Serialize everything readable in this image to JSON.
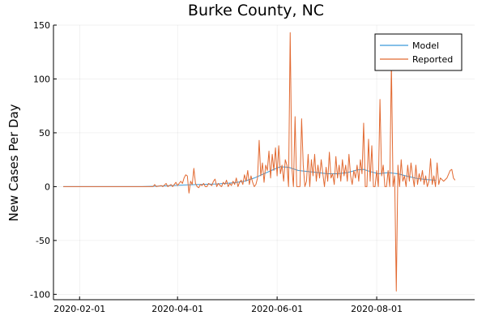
{
  "chart_data": {
    "type": "line",
    "title": "Burke County, NC",
    "xlabel": "",
    "ylabel": "New Cases Per Day",
    "x_axis": {
      "type": "date",
      "range": [
        "2020-01-16",
        "2020-09-30"
      ],
      "ticks": [
        "2020-02-01",
        "2020-04-01",
        "2020-06-01",
        "2020-08-01"
      ]
    },
    "y_axis": {
      "range": [
        -105,
        150
      ],
      "ticks": [
        -100,
        -50,
        0,
        50,
        100,
        150
      ]
    },
    "grid": true,
    "legend": "top-right",
    "series": [
      {
        "name": "Model",
        "color": "#3a9ad9",
        "points": [
          [
            "2020-01-22",
            0
          ],
          [
            "2020-02-15",
            0
          ],
          [
            "2020-03-10",
            0
          ],
          [
            "2020-03-20",
            0.5
          ],
          [
            "2020-03-28",
            1
          ],
          [
            "2020-04-05",
            1.5
          ],
          [
            "2020-04-15",
            2
          ],
          [
            "2020-04-25",
            2.5
          ],
          [
            "2020-05-05",
            3.5
          ],
          [
            "2020-05-12",
            5
          ],
          [
            "2020-05-18",
            8
          ],
          [
            "2020-05-24",
            12
          ],
          [
            "2020-05-30",
            16
          ],
          [
            "2020-06-03",
            18.5
          ],
          [
            "2020-06-08",
            18
          ],
          [
            "2020-06-14",
            15
          ],
          [
            "2020-06-20",
            14
          ],
          [
            "2020-06-26",
            13
          ],
          [
            "2020-07-02",
            12
          ],
          [
            "2020-07-08",
            12
          ],
          [
            "2020-07-14",
            13
          ],
          [
            "2020-07-20",
            15.5
          ],
          [
            "2020-07-24",
            16
          ],
          [
            "2020-07-28",
            14
          ],
          [
            "2020-08-02",
            12
          ],
          [
            "2020-08-08",
            13
          ],
          [
            "2020-08-14",
            12
          ],
          [
            "2020-08-20",
            9.5
          ],
          [
            "2020-08-26",
            7.5
          ],
          [
            "2020-09-01",
            6.5
          ],
          [
            "2020-09-06",
            6
          ]
        ]
      },
      {
        "name": "Reported",
        "color": "#e26a32",
        "points": [
          [
            "2020-01-22",
            0
          ],
          [
            "2020-03-10",
            0
          ],
          [
            "2020-03-17",
            0
          ],
          [
            "2020-03-18",
            2
          ],
          [
            "2020-03-19",
            0
          ],
          [
            "2020-03-22",
            1
          ],
          [
            "2020-03-23",
            0
          ],
          [
            "2020-03-25",
            3
          ],
          [
            "2020-03-26",
            0
          ],
          [
            "2020-03-28",
            2
          ],
          [
            "2020-03-29",
            0
          ],
          [
            "2020-03-31",
            4
          ],
          [
            "2020-04-01",
            1
          ],
          [
            "2020-04-03",
            5
          ],
          [
            "2020-04-04",
            3
          ],
          [
            "2020-04-05",
            8
          ],
          [
            "2020-04-06",
            11
          ],
          [
            "2020-04-07",
            10
          ],
          [
            "2020-04-08",
            -6
          ],
          [
            "2020-04-09",
            5
          ],
          [
            "2020-04-10",
            2
          ],
          [
            "2020-04-11",
            17
          ],
          [
            "2020-04-12",
            3
          ],
          [
            "2020-04-13",
            0
          ],
          [
            "2020-04-14",
            -1
          ],
          [
            "2020-04-15",
            2
          ],
          [
            "2020-04-16",
            1
          ],
          [
            "2020-04-17",
            3
          ],
          [
            "2020-04-18",
            0
          ],
          [
            "2020-04-19",
            0
          ],
          [
            "2020-04-20",
            3
          ],
          [
            "2020-04-21",
            2
          ],
          [
            "2020-04-22",
            1
          ],
          [
            "2020-04-23",
            5
          ],
          [
            "2020-04-24",
            7
          ],
          [
            "2020-04-25",
            0
          ],
          [
            "2020-04-26",
            3
          ],
          [
            "2020-04-27",
            1
          ],
          [
            "2020-04-28",
            0
          ],
          [
            "2020-04-29",
            4
          ],
          [
            "2020-04-30",
            2
          ],
          [
            "2020-05-01",
            6
          ],
          [
            "2020-05-02",
            0
          ],
          [
            "2020-05-03",
            3
          ],
          [
            "2020-05-04",
            1
          ],
          [
            "2020-05-05",
            5
          ],
          [
            "2020-05-06",
            2
          ],
          [
            "2020-05-07",
            8
          ],
          [
            "2020-05-08",
            0
          ],
          [
            "2020-05-09",
            4
          ],
          [
            "2020-05-10",
            6
          ],
          [
            "2020-05-11",
            2
          ],
          [
            "2020-05-12",
            11
          ],
          [
            "2020-05-13",
            5
          ],
          [
            "2020-05-14",
            15
          ],
          [
            "2020-05-15",
            2
          ],
          [
            "2020-05-16",
            10
          ],
          [
            "2020-05-17",
            4
          ],
          [
            "2020-05-18",
            0
          ],
          [
            "2020-05-19",
            2
          ],
          [
            "2020-05-20",
            8
          ],
          [
            "2020-05-21",
            43
          ],
          [
            "2020-05-22",
            10
          ],
          [
            "2020-05-23",
            22
          ],
          [
            "2020-05-24",
            4
          ],
          [
            "2020-05-25",
            20
          ],
          [
            "2020-05-26",
            15
          ],
          [
            "2020-05-27",
            33
          ],
          [
            "2020-05-28",
            8
          ],
          [
            "2020-05-29",
            30
          ],
          [
            "2020-05-30",
            15
          ],
          [
            "2020-05-31",
            36
          ],
          [
            "2020-06-01",
            10
          ],
          [
            "2020-06-02",
            38
          ],
          [
            "2020-06-03",
            12
          ],
          [
            "2020-06-04",
            20
          ],
          [
            "2020-06-05",
            5
          ],
          [
            "2020-06-06",
            25
          ],
          [
            "2020-06-07",
            20
          ],
          [
            "2020-06-08",
            0
          ],
          [
            "2020-06-09",
            143
          ],
          [
            "2020-06-10",
            18
          ],
          [
            "2020-06-11",
            0
          ],
          [
            "2020-06-12",
            65
          ],
          [
            "2020-06-13",
            0
          ],
          [
            "2020-06-14",
            0
          ],
          [
            "2020-06-15",
            0
          ],
          [
            "2020-06-16",
            63
          ],
          [
            "2020-06-17",
            20
          ],
          [
            "2020-06-18",
            0
          ],
          [
            "2020-06-19",
            5
          ],
          [
            "2020-06-20",
            30
          ],
          [
            "2020-06-21",
            0
          ],
          [
            "2020-06-22",
            25
          ],
          [
            "2020-06-23",
            10
          ],
          [
            "2020-06-24",
            30
          ],
          [
            "2020-06-25",
            5
          ],
          [
            "2020-06-26",
            20
          ],
          [
            "2020-06-27",
            8
          ],
          [
            "2020-06-28",
            25
          ],
          [
            "2020-06-29",
            12
          ],
          [
            "2020-06-30",
            0
          ],
          [
            "2020-07-01",
            18
          ],
          [
            "2020-07-02",
            5
          ],
          [
            "2020-07-03",
            32
          ],
          [
            "2020-07-04",
            8
          ],
          [
            "2020-07-05",
            12
          ],
          [
            "2020-07-06",
            2
          ],
          [
            "2020-07-07",
            28
          ],
          [
            "2020-07-08",
            8
          ],
          [
            "2020-07-09",
            20
          ],
          [
            "2020-07-10",
            5
          ],
          [
            "2020-07-11",
            25
          ],
          [
            "2020-07-12",
            10
          ],
          [
            "2020-07-13",
            20
          ],
          [
            "2020-07-14",
            5
          ],
          [
            "2020-07-15",
            30
          ],
          [
            "2020-07-16",
            10
          ],
          [
            "2020-07-17",
            2
          ],
          [
            "2020-07-18",
            15
          ],
          [
            "2020-07-19",
            8
          ],
          [
            "2020-07-20",
            20
          ],
          [
            "2020-07-21",
            5
          ],
          [
            "2020-07-22",
            25
          ],
          [
            "2020-07-23",
            12
          ],
          [
            "2020-07-24",
            59
          ],
          [
            "2020-07-25",
            0
          ],
          [
            "2020-07-26",
            0
          ],
          [
            "2020-07-27",
            44
          ],
          [
            "2020-07-28",
            5
          ],
          [
            "2020-07-29",
            38
          ],
          [
            "2020-07-30",
            0
          ],
          [
            "2020-07-31",
            0
          ],
          [
            "2020-08-01",
            15
          ],
          [
            "2020-08-02",
            0
          ],
          [
            "2020-08-03",
            81
          ],
          [
            "2020-08-04",
            10
          ],
          [
            "2020-08-05",
            20
          ],
          [
            "2020-08-06",
            0
          ],
          [
            "2020-08-07",
            0
          ],
          [
            "2020-08-08",
            15
          ],
          [
            "2020-08-09",
            0
          ],
          [
            "2020-08-10",
            115
          ],
          [
            "2020-08-11",
            0
          ],
          [
            "2020-08-12",
            10
          ],
          [
            "2020-08-13",
            -97
          ],
          [
            "2020-08-14",
            20
          ],
          [
            "2020-08-15",
            0
          ],
          [
            "2020-08-16",
            25
          ],
          [
            "2020-08-17",
            5
          ],
          [
            "2020-08-18",
            10
          ],
          [
            "2020-08-19",
            0
          ],
          [
            "2020-08-20",
            20
          ],
          [
            "2020-08-21",
            5
          ],
          [
            "2020-08-22",
            22
          ],
          [
            "2020-08-23",
            10
          ],
          [
            "2020-08-24",
            0
          ],
          [
            "2020-08-25",
            20
          ],
          [
            "2020-08-26",
            2
          ],
          [
            "2020-08-27",
            12
          ],
          [
            "2020-08-28",
            5
          ],
          [
            "2020-08-29",
            15
          ],
          [
            "2020-08-30",
            2
          ],
          [
            "2020-08-31",
            10
          ],
          [
            "2020-09-01",
            0
          ],
          [
            "2020-09-02",
            5
          ],
          [
            "2020-09-03",
            26
          ],
          [
            "2020-09-04",
            2
          ],
          [
            "2020-09-05",
            10
          ],
          [
            "2020-09-06",
            0
          ],
          [
            "2020-09-07",
            22
          ],
          [
            "2020-09-08",
            2
          ],
          [
            "2020-09-09",
            8
          ],
          [
            "2020-09-11",
            5
          ],
          [
            "2020-09-13",
            8
          ],
          [
            "2020-09-15",
            15
          ],
          [
            "2020-09-16",
            16
          ],
          [
            "2020-09-17",
            8
          ],
          [
            "2020-09-18",
            6
          ]
        ]
      }
    ]
  }
}
